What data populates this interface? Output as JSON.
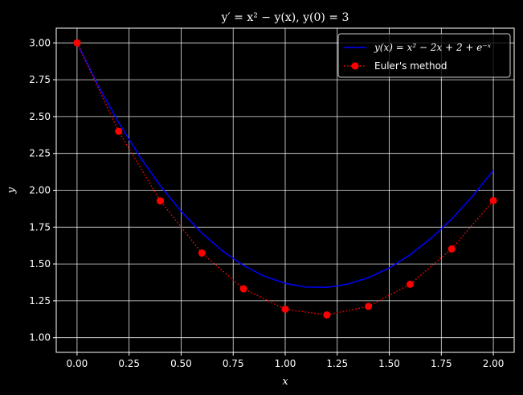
{
  "chart_data": {
    "type": "line",
    "title": "y′ = x² − y(x), y(0) = 3",
    "xlabel": "x",
    "ylabel": "y",
    "xlim": [
      -0.1,
      2.1
    ],
    "ylim": [
      0.9,
      3.1
    ],
    "xticks": [
      "0.00",
      "0.25",
      "0.50",
      "0.75",
      "1.00",
      "1.25",
      "1.50",
      "1.75",
      "2.00"
    ],
    "yticks": [
      "1.00",
      "1.25",
      "1.50",
      "1.75",
      "2.00",
      "2.25",
      "2.50",
      "2.75",
      "3.00"
    ],
    "grid": true,
    "legend_placement": "top-right",
    "series": [
      {
        "name": "y(x) = x² − 2x + 2 + e⁻ˣ",
        "style": "solid",
        "color": "#0000ff",
        "x": [
          0.0,
          0.1,
          0.2,
          0.3,
          0.4,
          0.5,
          0.6,
          0.7,
          0.8,
          0.9,
          1.0,
          1.1,
          1.2,
          1.3,
          1.4,
          1.5,
          1.6,
          1.7,
          1.8,
          1.9,
          2.0
        ],
        "y": [
          3.0,
          2.715,
          2.459,
          2.231,
          2.03,
          1.857,
          1.709,
          1.587,
          1.489,
          1.417,
          1.368,
          1.343,
          1.341,
          1.363,
          1.407,
          1.473,
          1.562,
          1.673,
          1.805,
          1.96,
          2.135
        ]
      },
      {
        "name": "Euler's method",
        "style": "dotted",
        "color": "#ff0000",
        "marker": "circle",
        "x": [
          0.0,
          0.2,
          0.4,
          0.6,
          0.8,
          1.0,
          1.2,
          1.4,
          1.6,
          1.8,
          2.0
        ],
        "y": [
          3.0,
          2.4,
          1.928,
          1.574,
          1.331,
          1.193,
          1.154,
          1.212,
          1.362,
          1.602,
          1.93
        ]
      }
    ]
  }
}
